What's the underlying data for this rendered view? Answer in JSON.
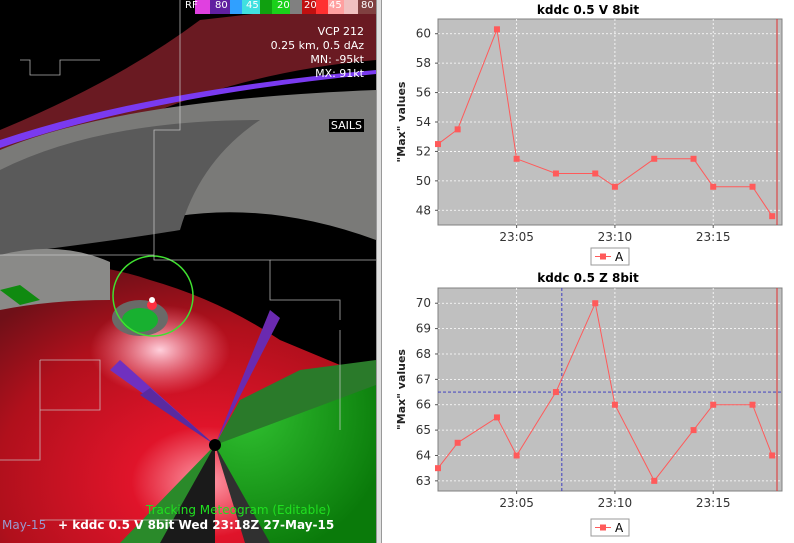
{
  "radar": {
    "colorbar_label": "RF",
    "colorbar_ticks": [
      "80",
      "45",
      "20",
      "20",
      "45",
      "80"
    ],
    "vcp": "VCP 212",
    "res": "0.25 km, 0.5 dAz",
    "mn": "MN: -95kt",
    "mx": "MX: 91kt",
    "sails": "SAILS",
    "meteogram_label": "Tracking Meteogram (Editable)",
    "status_date_fragment": "May-15",
    "status_line": "+ kddc 0.5  V 8bit  Wed 23:18Z 27-May-15"
  },
  "chart_data": [
    {
      "type": "line",
      "title": "kddc 0.5  V 8bit",
      "ylabel": "\"Max\" values",
      "x": [
        "23:01",
        "23:02",
        "23:04",
        "23:05",
        "23:07",
        "23:09",
        "23:10",
        "23:12",
        "23:14",
        "23:15",
        "23:17",
        "23:18"
      ],
      "xticks": [
        "23:05",
        "23:10",
        "23:15"
      ],
      "series": [
        {
          "name": "A",
          "values": [
            52.5,
            53.5,
            60.3,
            51.5,
            50.5,
            50.5,
            49.6,
            51.5,
            51.5,
            49.6,
            49.6,
            47.6
          ]
        }
      ],
      "ylim": [
        47.0,
        61.0
      ],
      "yticks": [
        "48",
        "50",
        "52",
        "54",
        "56",
        "58",
        "60"
      ],
      "grid": true,
      "legend": "bottom-center"
    },
    {
      "type": "line",
      "title": "kddc 0.5  Z 8bit",
      "ylabel": "\"Max\" values",
      "x": [
        "23:01",
        "23:02",
        "23:04",
        "23:05",
        "23:07",
        "23:09",
        "23:10",
        "23:12",
        "23:14",
        "23:15",
        "23:17",
        "23:18"
      ],
      "xticks": [
        "23:05",
        "23:10",
        "23:15"
      ],
      "series": [
        {
          "name": "A",
          "values": [
            63.5,
            64.5,
            65.5,
            64.0,
            66.5,
            70.0,
            66.0,
            63.0,
            65.0,
            66.0,
            66.0,
            64.0
          ]
        }
      ],
      "ylim": [
        62.6,
        70.6
      ],
      "yticks": [
        "63",
        "64",
        "65",
        "66",
        "67",
        "68",
        "69",
        "70"
      ],
      "grid": true,
      "legend": "bottom-center"
    }
  ]
}
